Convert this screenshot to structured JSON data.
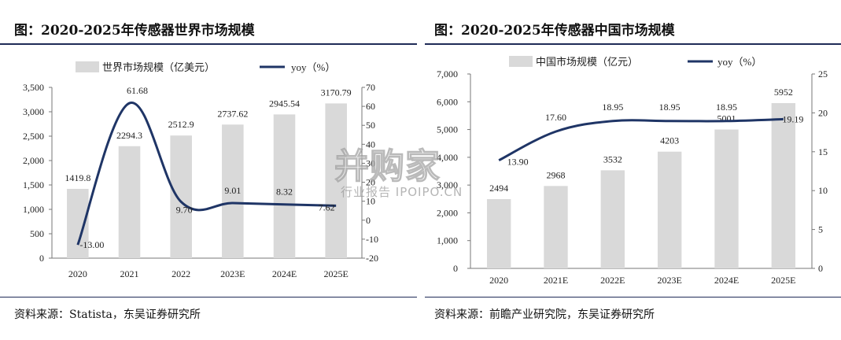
{
  "charts": [
    {
      "title": "图：2020-2025年传感器世界市场规模",
      "source": "资料来源：Statista，东吴证券研究所",
      "chart_data": {
        "type": "bar",
        "categories": [
          "2020",
          "2021",
          "2022",
          "2023E",
          "2024E",
          "2025E"
        ],
        "series": [
          {
            "name": "世界市场规模（亿美元）",
            "type": "bar",
            "axis": "left",
            "values": [
              1419.8,
              2294.3,
              2512.9,
              2737.62,
              2945.54,
              3170.79
            ],
            "labels": [
              "1419.8",
              "2294.3",
              "2512.9",
              "2737.62",
              "2945.54",
              "3170.79"
            ]
          },
          {
            "name": "yoy（%）",
            "type": "line",
            "axis": "right",
            "values": [
              -13.0,
              61.68,
              9.7,
              9.01,
              8.32,
              7.62
            ],
            "labels": [
              "-13.00",
              "61.68",
              "9.70",
              "9.01",
              "8.32",
              "7.62"
            ]
          }
        ],
        "ylim_left": [
          0,
          3500
        ],
        "yticks_left": [
          "0",
          "500",
          "1,000",
          "1,500",
          "2,000",
          "2,500",
          "3,000",
          "3,500"
        ],
        "ylim_right": [
          -20,
          70
        ],
        "yticks_right": [
          "-20",
          "-10",
          "0",
          "10",
          "20",
          "30",
          "40",
          "50",
          "60",
          "70"
        ],
        "legend": "top",
        "grid": false,
        "bar_color": "#d9d9d9",
        "line_color": "#1f3566"
      }
    },
    {
      "title": "图：2020-2025年传感器中国市场规模",
      "source": "资料来源：前瞻产业研究院，东吴证券研究所",
      "chart_data": {
        "type": "bar",
        "categories": [
          "2020",
          "2021E",
          "2022E",
          "2023E",
          "2024E",
          "2025E"
        ],
        "series": [
          {
            "name": "中国市场规模（亿元）",
            "type": "bar",
            "axis": "left",
            "values": [
              2494,
              2968,
              3532,
              4203,
              5001,
              5952
            ],
            "labels": [
              "2494",
              "2968",
              "3532",
              "4203",
              "5001",
              "5952"
            ]
          },
          {
            "name": "yoy（%）",
            "type": "line",
            "axis": "right",
            "values": [
              13.9,
              17.6,
              18.95,
              18.95,
              18.95,
              19.19
            ],
            "labels": [
              "13.90",
              "17.60",
              "18.95",
              "18.95",
              "18.95",
              "19.19"
            ]
          }
        ],
        "ylim_left": [
          0,
          7000
        ],
        "yticks_left": [
          "0",
          "1,000",
          "2,000",
          "3,000",
          "4,000",
          "5,000",
          "6,000",
          "7,000"
        ],
        "ylim_right": [
          0,
          25
        ],
        "yticks_right": [
          "0",
          "5",
          "10",
          "15",
          "20",
          "25"
        ],
        "legend": "top",
        "grid": false,
        "bar_color": "#d9d9d9",
        "line_color": "#1f3566"
      }
    }
  ],
  "watermark": {
    "main": "并购家",
    "sub": "行业报告 IPOIPO.CN"
  }
}
